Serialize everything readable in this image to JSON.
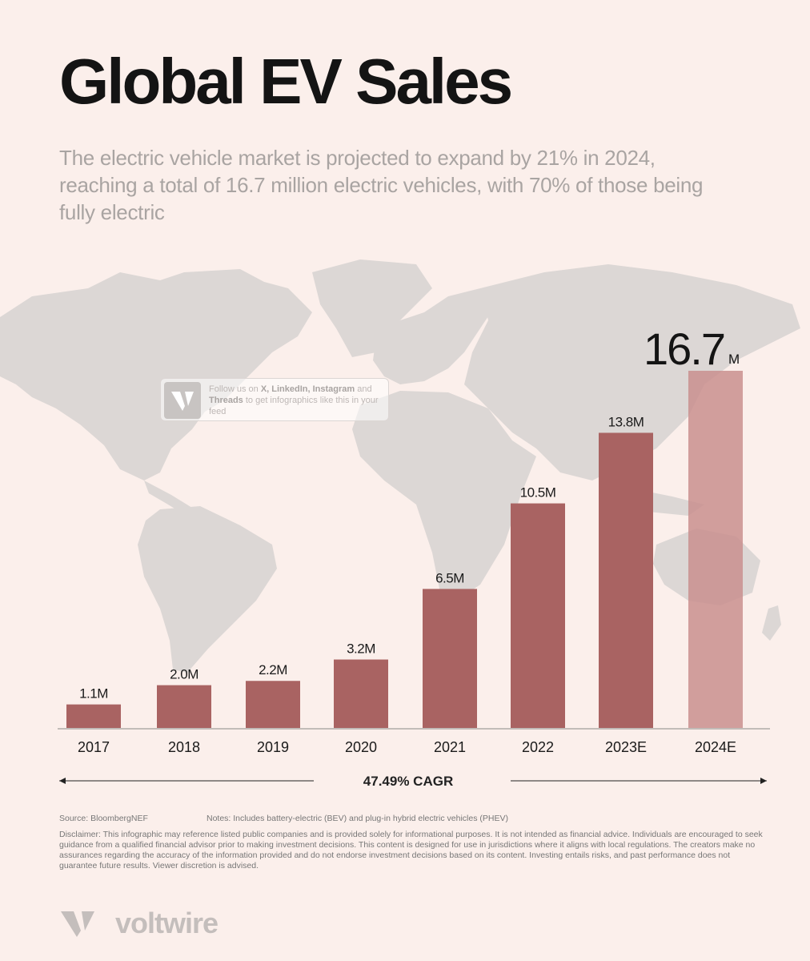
{
  "header": {
    "title": "Global EV Sales",
    "subtitle": "The electric vehicle market is projected to expand by 21% in 2024, reaching a total of 16.7 million electric vehicles, with 70% of those being fully electric"
  },
  "follow_card": {
    "line_prefix": "Follow us on ",
    "platforms": "X, LinkedIn, Instagram",
    "and": " and ",
    "threads": "Threads",
    "line_suffix": " to get infographics like this in your feed"
  },
  "chart_data": {
    "type": "bar",
    "categories": [
      "2017",
      "2018",
      "2019",
      "2020",
      "2021",
      "2022",
      "2023E",
      "2024E"
    ],
    "values": [
      1.1,
      2.0,
      2.2,
      3.2,
      6.5,
      10.5,
      13.8,
      16.7
    ],
    "data_labels": [
      "1.1M",
      "2.0M",
      "2.2M",
      "3.2M",
      "6.5M",
      "10.5M",
      "13.8M",
      "16.7"
    ],
    "highlight_unit": "M",
    "ylim": [
      0,
      16.7
    ],
    "grid": false,
    "colors": {
      "bar": "#a96362",
      "highlight": "#c98f8e"
    },
    "annotation": "47.49% CAGR"
  },
  "footer": {
    "source": "Source: BloombergNEF",
    "notes": "Notes: Includes battery-electric (BEV) and plug-in hybrid electric vehicles (PHEV)",
    "disclaimer": "Disclaimer: This infographic may reference listed public companies and is provided solely for informational purposes. It is not intended as financial advice. Individuals are encouraged to seek guidance from a qualified financial advisor prior to making investment decisions. This content is designed for use in jurisdictions where it aligns with local regulations. The creators make no assurances regarding the accuracy of the information provided and do not endorse investment decisions based on its content. Investing entails risks, and past performance does not guarantee future results. Viewer discretion is advised.",
    "brand": "voltwire"
  },
  "colors": {
    "background": "#fbefeb",
    "map": "#dcd7d5"
  }
}
